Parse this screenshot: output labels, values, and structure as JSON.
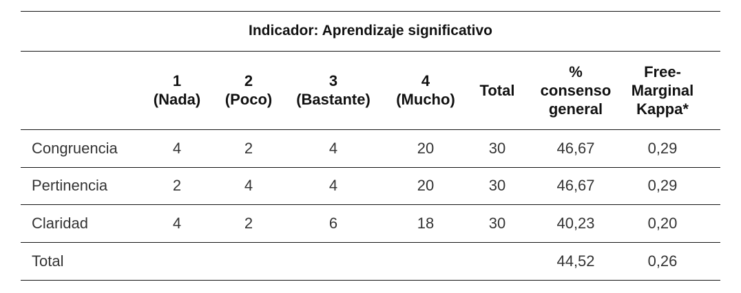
{
  "title": "Indicador: Aprendizaje significativo",
  "table": {
    "header": [
      [
        "1",
        "(Nada)"
      ],
      [
        "2",
        "(Poco)"
      ],
      [
        "3",
        "(Bastante)"
      ],
      [
        "4",
        "(Mucho)"
      ],
      [
        "Total"
      ],
      [
        "%",
        "consenso",
        "general"
      ],
      [
        "Free-",
        "Marginal",
        "Kappa*"
      ]
    ],
    "rows": [
      {
        "label": "Congruencia",
        "values": [
          "4",
          "2",
          "4",
          "20",
          "30",
          "46,67",
          "0,29"
        ]
      },
      {
        "label": "Pertinencia",
        "values": [
          "2",
          "4",
          "4",
          "20",
          "30",
          "46,67",
          "0,29"
        ]
      },
      {
        "label": "Claridad",
        "values": [
          "4",
          "2",
          "6",
          "18",
          "30",
          "40,23",
          "0,20"
        ]
      }
    ],
    "total": {
      "label": "Total",
      "consensus": "44,52",
      "kappa": "0,26"
    }
  }
}
